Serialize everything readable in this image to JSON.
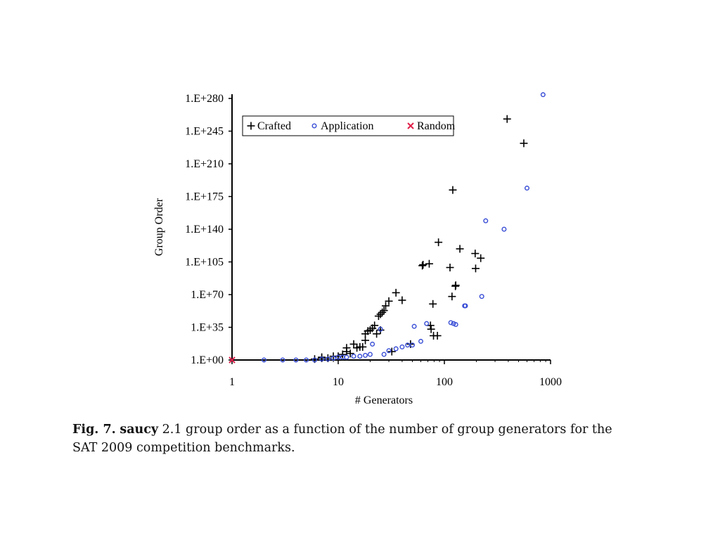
{
  "chart_data": {
    "type": "scatter",
    "title": "",
    "xlabel": "# Generators",
    "ylabel": "Group Order",
    "x_scale": "log",
    "xlim": [
      1,
      1000
    ],
    "ylim": [
      0,
      280
    ],
    "y_unit": "log10 of group order",
    "x_ticks": [
      {
        "value": 1,
        "label": "1"
      },
      {
        "value": 10,
        "label": "10"
      },
      {
        "value": 100,
        "label": "100"
      },
      {
        "value": 1000,
        "label": "1000"
      }
    ],
    "y_ticks": [
      {
        "value": 0,
        "label": "1.E+00"
      },
      {
        "value": 35,
        "label": "1.E+35"
      },
      {
        "value": 70,
        "label": "1.E+70"
      },
      {
        "value": 105,
        "label": "1.E+105"
      },
      {
        "value": 140,
        "label": "1.E+140"
      },
      {
        "value": 175,
        "label": "1.E+175"
      },
      {
        "value": 210,
        "label": "1.E+210"
      },
      {
        "value": 245,
        "label": "1.E+245"
      },
      {
        "value": 280,
        "label": "1.E+280"
      }
    ],
    "grid": false,
    "legend": {
      "placement": "top-left, inside",
      "entries": [
        {
          "series": "Crafted",
          "marker": "+"
        },
        {
          "series": "Application",
          "marker": "o"
        },
        {
          "series": "Random",
          "marker": "x"
        }
      ]
    },
    "series": [
      {
        "name": "Crafted",
        "marker": "plus",
        "color": "#000000",
        "points": [
          [
            6,
            1
          ],
          [
            7,
            2
          ],
          [
            7,
            3
          ],
          [
            8,
            2
          ],
          [
            9,
            4
          ],
          [
            10,
            4
          ],
          [
            11,
            6
          ],
          [
            12,
            9
          ],
          [
            12,
            13
          ],
          [
            13,
            7
          ],
          [
            14,
            17
          ],
          [
            15,
            13
          ],
          [
            16,
            14
          ],
          [
            17,
            14
          ],
          [
            18,
            21
          ],
          [
            18,
            28
          ],
          [
            19,
            31
          ],
          [
            20,
            32
          ],
          [
            21,
            34
          ],
          [
            22,
            37
          ],
          [
            23,
            28
          ],
          [
            24,
            47
          ],
          [
            25,
            49
          ],
          [
            25,
            32
          ],
          [
            26,
            51
          ],
          [
            27,
            53
          ],
          [
            28,
            58
          ],
          [
            30,
            63
          ],
          [
            32,
            9
          ],
          [
            35,
            72
          ],
          [
            40,
            64
          ],
          [
            48,
            17
          ],
          [
            62,
            101
          ],
          [
            63,
            102
          ],
          [
            72,
            103
          ],
          [
            74,
            37
          ],
          [
            75,
            33
          ],
          [
            78,
            60
          ],
          [
            79,
            26
          ],
          [
            86,
            26
          ],
          [
            88,
            126
          ],
          [
            113,
            99
          ],
          [
            118,
            68
          ],
          [
            120,
            182
          ],
          [
            127,
            79
          ],
          [
            128,
            80
          ],
          [
            140,
            119
          ],
          [
            195,
            114
          ],
          [
            197,
            98
          ],
          [
            220,
            109
          ],
          [
            390,
            258
          ],
          [
            560,
            232
          ]
        ]
      },
      {
        "name": "Application",
        "marker": "circle",
        "color": "#3a4fd6",
        "points": [
          [
            2,
            0
          ],
          [
            3,
            0
          ],
          [
            4,
            0
          ],
          [
            5,
            0
          ],
          [
            6,
            0
          ],
          [
            7,
            1
          ],
          [
            8,
            1
          ],
          [
            9,
            2
          ],
          [
            10,
            3
          ],
          [
            11,
            3
          ],
          [
            12,
            3
          ],
          [
            14,
            4
          ],
          [
            16,
            4
          ],
          [
            18,
            5
          ],
          [
            20,
            6
          ],
          [
            21,
            17
          ],
          [
            25,
            33
          ],
          [
            27,
            6
          ],
          [
            30,
            10
          ],
          [
            35,
            12
          ],
          [
            40,
            14
          ],
          [
            45,
            16
          ],
          [
            50,
            16
          ],
          [
            52,
            36
          ],
          [
            60,
            20
          ],
          [
            68,
            39
          ],
          [
            115,
            40
          ],
          [
            122,
            39
          ],
          [
            128,
            38
          ],
          [
            155,
            58
          ],
          [
            158,
            58
          ],
          [
            225,
            68
          ],
          [
            245,
            149
          ],
          [
            365,
            140
          ],
          [
            600,
            184
          ],
          [
            850,
            284
          ]
        ]
      },
      {
        "name": "Random",
        "marker": "x",
        "color": "#e0204a",
        "points": [
          [
            1,
            0
          ]
        ]
      }
    ]
  },
  "caption": {
    "label": "Fig. 7.",
    "tool": "saucy",
    "text_line1": " 2.1 group order as a function of the number of group generators for the",
    "text_line2": "SAT 2009 competition benchmarks."
  }
}
